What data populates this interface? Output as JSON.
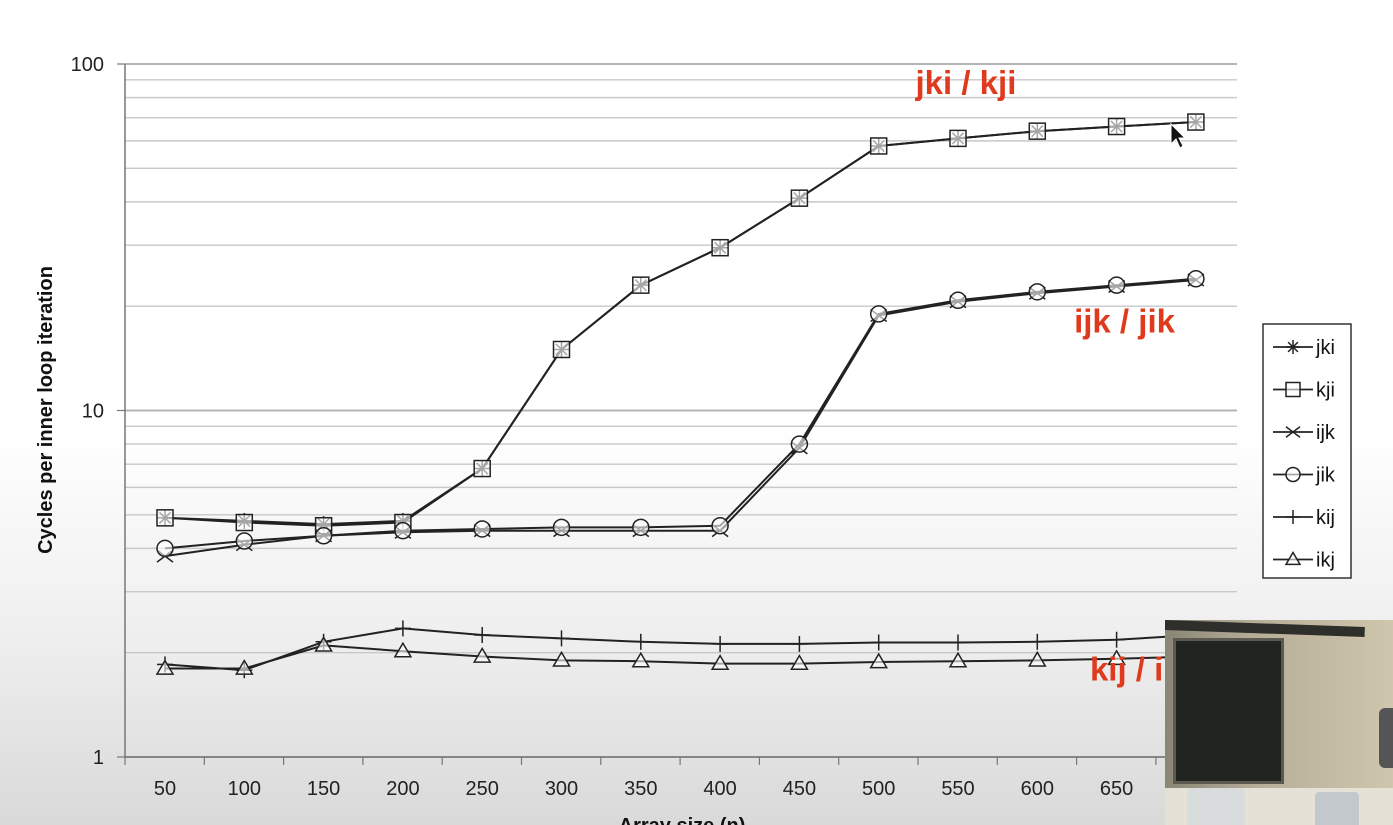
{
  "chart_data": {
    "type": "line",
    "ylabel": "Cycles per inner loop iteration",
    "xlabel": "Array size (n)",
    "y_scale": "log",
    "ylim": [
      1,
      100
    ],
    "y_ticks": [
      "1",
      "10",
      "100"
    ],
    "x": [
      50,
      100,
      150,
      200,
      250,
      300,
      350,
      400,
      450,
      500,
      550,
      600,
      650,
      700
    ],
    "x_tick_labels": [
      "50",
      "100",
      "150",
      "200",
      "250",
      "300",
      "350",
      "400",
      "450",
      "500",
      "550",
      "600",
      "650"
    ],
    "grid": "horizontal",
    "legend_position": "right",
    "series": [
      {
        "name": "jki",
        "marker": "asterisk",
        "values": [
          4.9,
          4.8,
          4.7,
          4.8,
          6.8,
          15,
          23,
          29.5,
          41,
          58,
          61,
          64,
          66,
          68
        ]
      },
      {
        "name": "kji",
        "marker": "square",
        "values": [
          4.9,
          4.75,
          4.65,
          4.75,
          6.8,
          15,
          23,
          29.5,
          41,
          58,
          61,
          64,
          66,
          68
        ]
      },
      {
        "name": "ijk",
        "marker": "x",
        "values": [
          3.8,
          4.1,
          4.35,
          4.45,
          4.5,
          4.5,
          4.5,
          4.5,
          7.8,
          18.8,
          20.6,
          21.8,
          22.8,
          23.8
        ]
      },
      {
        "name": "jik",
        "marker": "circle",
        "values": [
          4.0,
          4.2,
          4.35,
          4.5,
          4.55,
          4.6,
          4.6,
          4.65,
          8.0,
          19.0,
          20.8,
          22.0,
          23.0,
          24.0
        ]
      },
      {
        "name": "kij",
        "marker": "plus",
        "values": [
          1.85,
          1.78,
          2.15,
          2.35,
          2.25,
          2.2,
          2.15,
          2.12,
          2.12,
          2.14,
          2.14,
          2.15,
          2.18,
          2.25
        ]
      },
      {
        "name": "ikj",
        "marker": "triangle",
        "values": [
          1.8,
          1.8,
          2.1,
          2.02,
          1.95,
          1.9,
          1.89,
          1.86,
          1.86,
          1.88,
          1.89,
          1.9,
          1.92,
          1.95
        ]
      }
    ],
    "annotations": [
      {
        "text": "jki / kji",
        "x": 555,
        "y": 82
      },
      {
        "text": "ijk / jik",
        "x": 655,
        "y": 16.8
      },
      {
        "text": "kij / ikj",
        "x": 665,
        "y": 1.66
      }
    ]
  },
  "colors": {
    "annotation": "#e03a1e",
    "lines": "#222222",
    "grid": "#c8c8c8"
  }
}
